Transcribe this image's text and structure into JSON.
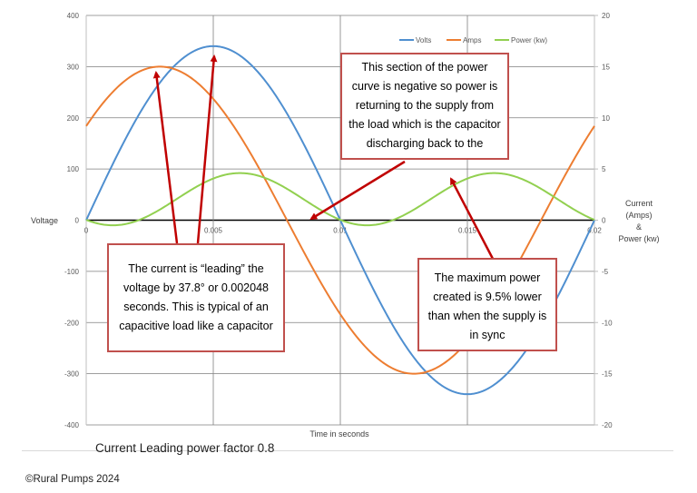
{
  "chart_data": {
    "type": "line",
    "title": "",
    "xlabel": "Time in seconds",
    "ylabel_left": "Voltage",
    "ylabel_right": [
      "Current",
      "(Amps)",
      "&",
      "Power (kw)"
    ],
    "xlim": [
      0,
      0.02
    ],
    "ylim_left": [
      -400,
      400
    ],
    "ylim_right": [
      -20,
      20
    ],
    "x_ticks": [
      "0",
      "0.005",
      "0.01",
      "0.015",
      "0.02"
    ],
    "left_ticks": [
      "400",
      "300",
      "200",
      "100",
      "0",
      "-100",
      "-200",
      "-300",
      "-400"
    ],
    "right_ticks": [
      "20",
      "15",
      "10",
      "5",
      "0",
      "-5",
      "-10",
      "-15",
      "-20"
    ],
    "grid": true,
    "legend_position": "top-right",
    "series": [
      {
        "name": "Volts",
        "color": "#4f8fd0",
        "axis": "left",
        "amplitude": 340,
        "phase_deg": 0,
        "offset": 0
      },
      {
        "name": "Amps",
        "color": "#ed7d31",
        "axis": "right",
        "amplitude": 15,
        "phase_deg": 37.8,
        "offset": 0
      },
      {
        "name": "Power (kw)",
        "color": "#92d050",
        "axis": "right",
        "amplitude": 2.55,
        "phase_deg": 37.8,
        "offset": 2.05,
        "note": ""
      }
    ]
  },
  "callouts": {
    "negative": "This section of the power curve is negative so power is returning to the supply from the load which is the capacitor discharging back to the",
    "leading": "The current is “leading” the voltage by 37.8° or 0.002048 seconds. This is typical of an capacitive load like a capacitor",
    "max": "The maximum power created is 9.5% lower than when the supply is in sync"
  },
  "caption": "Current Leading power factor 0.8",
  "copyright": "©Rural Pumps 2024",
  "colors": {
    "arrow": "#c00000",
    "callout_border": "#c0504d"
  }
}
